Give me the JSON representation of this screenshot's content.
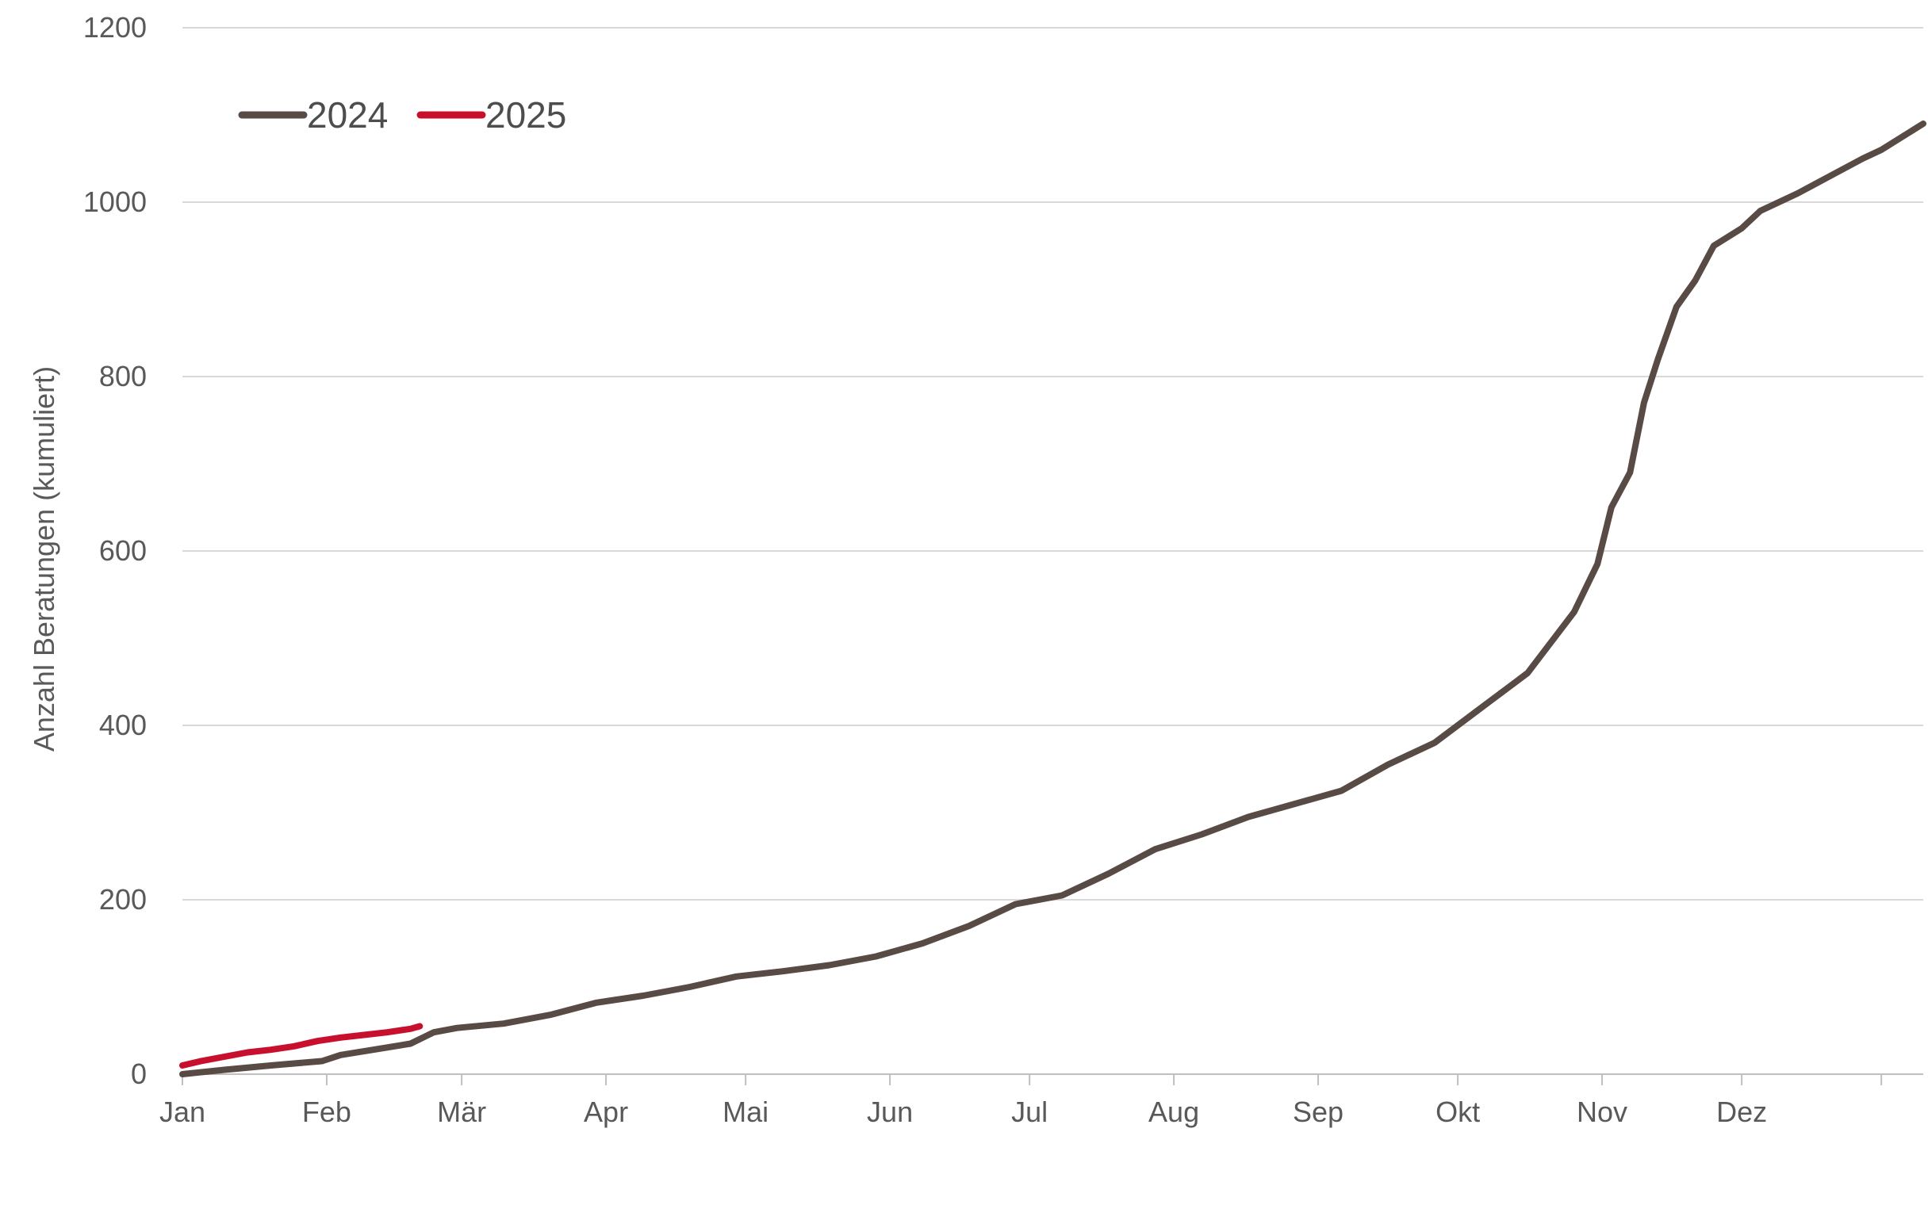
{
  "chart_data": {
    "type": "line",
    "title": "",
    "xlabel": "",
    "ylabel": "Anzahl Beratungen (kumuliert)",
    "x_tick_labels": [
      "Jan",
      "Feb",
      "Mär",
      "Apr",
      "Mai",
      "Jun",
      "Jul",
      "Aug",
      "Sep",
      "Okt",
      "Nov",
      "Dez"
    ],
    "y_ticks": [
      0,
      200,
      400,
      600,
      800,
      1000,
      1200
    ],
    "ylim": [
      0,
      1200
    ],
    "x_unit": "day of year",
    "xlim": [
      1,
      366
    ],
    "grid": "horizontal",
    "legend_position": "top-left",
    "series": [
      {
        "name": "2024",
        "color": "#584a44",
        "points": [
          [
            1,
            0
          ],
          [
            10,
            5
          ],
          [
            20,
            10
          ],
          [
            31,
            15
          ],
          [
            35,
            22
          ],
          [
            42,
            28
          ],
          [
            50,
            35
          ],
          [
            55,
            48
          ],
          [
            60,
            53
          ],
          [
            70,
            58
          ],
          [
            80,
            68
          ],
          [
            90,
            82
          ],
          [
            100,
            90
          ],
          [
            110,
            100
          ],
          [
            120,
            112
          ],
          [
            130,
            118
          ],
          [
            140,
            125
          ],
          [
            150,
            135
          ],
          [
            160,
            150
          ],
          [
            170,
            170
          ],
          [
            180,
            195
          ],
          [
            190,
            205
          ],
          [
            200,
            230
          ],
          [
            210,
            258
          ],
          [
            220,
            275
          ],
          [
            230,
            295
          ],
          [
            240,
            310
          ],
          [
            250,
            325
          ],
          [
            260,
            355
          ],
          [
            270,
            380
          ],
          [
            280,
            420
          ],
          [
            290,
            460
          ],
          [
            300,
            530
          ],
          [
            305,
            585
          ],
          [
            308,
            650
          ],
          [
            312,
            690
          ],
          [
            315,
            770
          ],
          [
            318,
            820
          ],
          [
            322,
            880
          ],
          [
            326,
            910
          ],
          [
            330,
            950
          ],
          [
            336,
            970
          ],
          [
            340,
            990
          ],
          [
            348,
            1010
          ],
          [
            355,
            1030
          ],
          [
            362,
            1050
          ],
          [
            366,
            1060
          ],
          [
            372,
            1080
          ],
          [
            375,
            1090
          ]
        ]
      },
      {
        "name": "2025",
        "color": "#c8102e",
        "points": [
          [
            1,
            10
          ],
          [
            5,
            15
          ],
          [
            10,
            20
          ],
          [
            15,
            25
          ],
          [
            20,
            28
          ],
          [
            25,
            32
          ],
          [
            30,
            38
          ],
          [
            35,
            42
          ],
          [
            40,
            45
          ],
          [
            45,
            48
          ],
          [
            50,
            52
          ],
          [
            52,
            55
          ]
        ]
      }
    ]
  }
}
